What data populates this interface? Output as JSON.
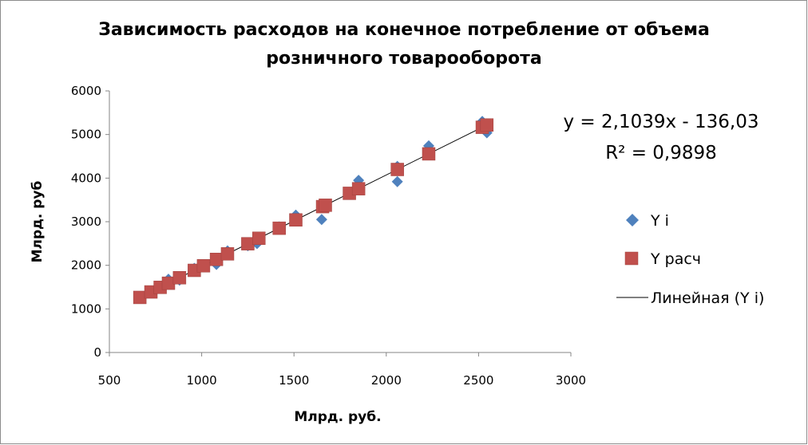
{
  "chart_data": {
    "type": "scatter",
    "title_lines": [
      "Зависимость расходов на конечное потребление от объема",
      "розничного товарооборота"
    ],
    "xlabel": "Млрд. руб.",
    "ylabel": "Млрд. руб",
    "xlim": [
      500,
      3000
    ],
    "ylim": [
      0,
      6000
    ],
    "x_ticks": [
      500,
      1000,
      1500,
      2000,
      2500,
      3000
    ],
    "y_ticks": [
      0,
      1000,
      2000,
      3000,
      4000,
      5000,
      6000
    ],
    "grid": false,
    "legend_position": "right",
    "series": [
      {
        "name": "Y i",
        "marker": "diamond",
        "color": "#4F81BD",
        "points": [
          [
            665,
            1265
          ],
          [
            725,
            1390
          ],
          [
            775,
            1500
          ],
          [
            820,
            1680
          ],
          [
            880,
            1660
          ],
          [
            960,
            1930
          ],
          [
            1010,
            1970
          ],
          [
            1080,
            2020
          ],
          [
            1140,
            2330
          ],
          [
            1250,
            2450
          ],
          [
            1300,
            2500
          ],
          [
            1420,
            2880
          ],
          [
            1510,
            3150
          ],
          [
            1650,
            3050
          ],
          [
            1670,
            3380
          ],
          [
            1800,
            3640
          ],
          [
            1850,
            3950
          ],
          [
            2060,
            3920
          ],
          [
            2060,
            4270
          ],
          [
            2230,
            4740
          ],
          [
            2520,
            5300
          ],
          [
            2545,
            5040
          ]
        ]
      },
      {
        "name": "Y расч",
        "marker": "square",
        "color": "#C0504D",
        "points": [
          [
            665,
            1263
          ],
          [
            725,
            1389
          ],
          [
            775,
            1494
          ],
          [
            820,
            1589
          ],
          [
            880,
            1715
          ],
          [
            960,
            1884
          ],
          [
            1010,
            1989
          ],
          [
            1080,
            2136
          ],
          [
            1140,
            2262
          ],
          [
            1250,
            2494
          ],
          [
            1310,
            2620
          ],
          [
            1420,
            2851
          ],
          [
            1510,
            3041
          ],
          [
            1655,
            3346
          ],
          [
            1670,
            3378
          ],
          [
            1800,
            3651
          ],
          [
            1850,
            3756
          ],
          [
            2060,
            4198
          ],
          [
            2230,
            4556
          ],
          [
            2520,
            5166
          ],
          [
            2545,
            5218
          ]
        ]
      },
      {
        "name": "Линейная (Y i)",
        "marker": "line",
        "color": "#000000",
        "slope": 2.1039,
        "intercept": -136.03,
        "x_range": [
          665,
          2545
        ]
      }
    ],
    "equation_text": "y = 2,1039x - 136,03",
    "r2_text": "R² = 0,9898"
  }
}
